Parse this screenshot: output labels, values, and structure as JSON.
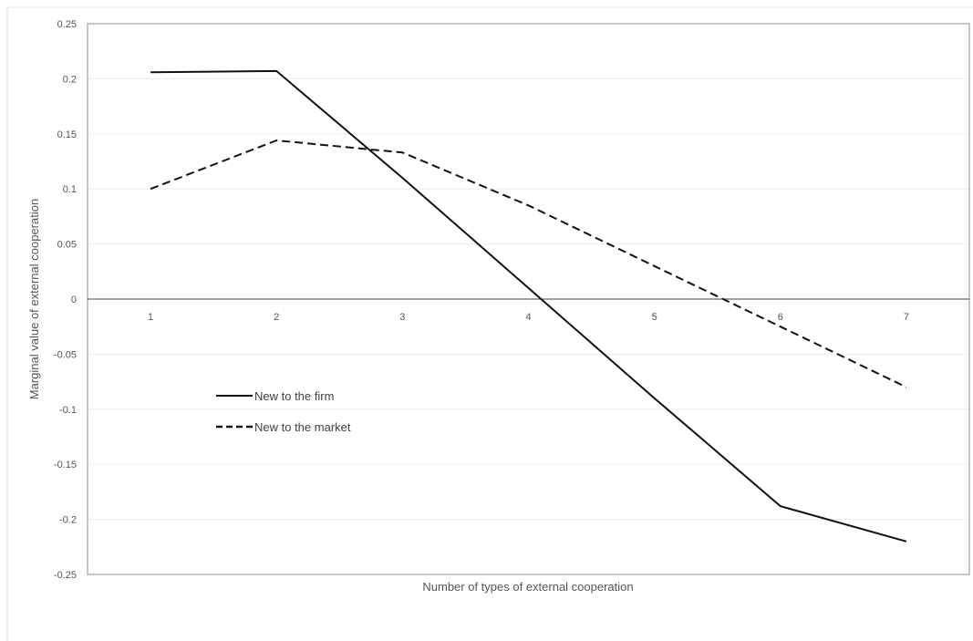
{
  "chart_data": {
    "type": "line",
    "xlabel": "Number of types of external cooperation",
    "ylabel": "Marginal value of external cooperation",
    "x": [
      1,
      2,
      3,
      4,
      5,
      6,
      7
    ],
    "x_tick_labels": [
      "1",
      "2",
      "3",
      "4",
      "5",
      "6",
      "7"
    ],
    "y_tick_labels": [
      "0.25",
      "0.2",
      "0.15",
      "0.1",
      "0.05",
      "0",
      "-0.05",
      "-0.1",
      "-0.15",
      "-0.2",
      "-0.25"
    ],
    "ylim": [
      -0.25,
      0.25
    ],
    "grid": true,
    "legend_position": "lower-left",
    "series": [
      {
        "name": "New to the firm",
        "style": "solid",
        "color": "#111111",
        "values": [
          0.206,
          0.207,
          0.11,
          0.01,
          -0.09,
          -0.188,
          -0.22
        ]
      },
      {
        "name": "New to the market",
        "style": "dashed",
        "color": "#111111",
        "values": [
          0.1,
          0.144,
          0.133,
          0.085,
          0.03,
          -0.025,
          -0.08
        ]
      }
    ]
  }
}
